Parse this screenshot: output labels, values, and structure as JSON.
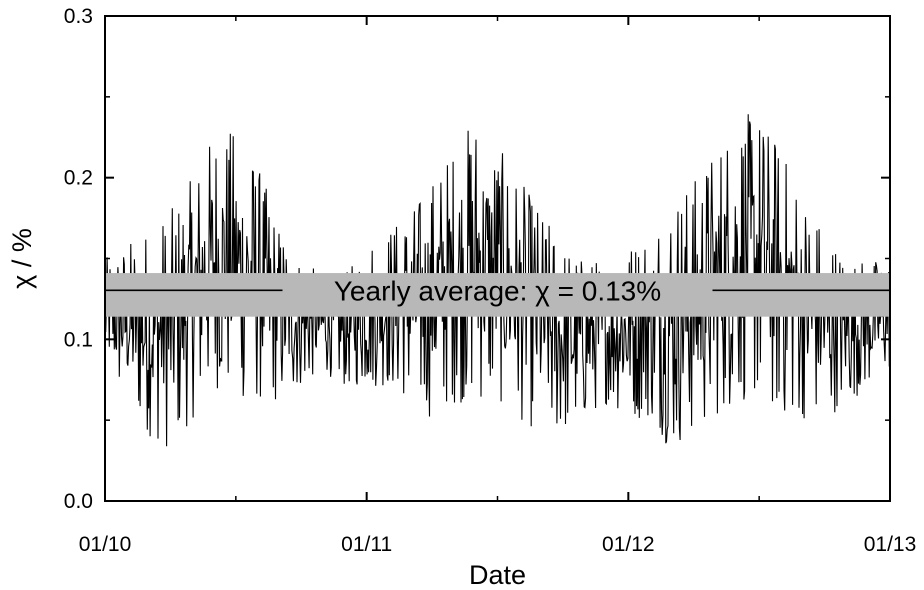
{
  "chart_data": {
    "type": "line",
    "title": "",
    "xlabel": "Date",
    "ylabel": "χ / %",
    "ylim": [
      0.0,
      0.3
    ],
    "y_ticks": [
      "0.0",
      "0.1",
      "0.2",
      "0.3"
    ],
    "x_ticks": [
      "01/10",
      "01/11",
      "01/12",
      "01/13"
    ],
    "x_range": [
      "2010-01",
      "2013-01"
    ],
    "grid": false,
    "legend": "none",
    "series": [
      {
        "color": "#000000",
        "style": "dense daily line oscillating around 0.13 with an annual cycle peaking mid-year",
        "x": [
          "2010-01",
          "2010-02",
          "2010-03",
          "2010-04",
          "2010-05",
          "2010-06",
          "2010-07",
          "2010-08",
          "2010-09",
          "2010-10",
          "2010-11",
          "2010-12",
          "2011-01",
          "2011-02",
          "2011-03",
          "2011-04",
          "2011-05",
          "2011-06",
          "2011-07",
          "2011-08",
          "2011-09",
          "2011-10",
          "2011-11",
          "2011-12",
          "2012-01",
          "2012-02",
          "2012-03",
          "2012-04",
          "2012-05",
          "2012-06",
          "2012-07",
          "2012-08",
          "2012-09",
          "2012-10",
          "2012-11",
          "2012-12",
          "2013-01"
        ],
        "upper": [
          0.15,
          0.16,
          0.17,
          0.18,
          0.2,
          0.23,
          0.23,
          0.21,
          0.17,
          0.15,
          0.14,
          0.14,
          0.16,
          0.17,
          0.18,
          0.2,
          0.22,
          0.24,
          0.22,
          0.2,
          0.18,
          0.16,
          0.15,
          0.15,
          0.16,
          0.17,
          0.19,
          0.2,
          0.22,
          0.24,
          0.24,
          0.22,
          0.19,
          0.17,
          0.15,
          0.15,
          0.15
        ],
        "lower": [
          0.08,
          0.06,
          0.04,
          0.03,
          0.05,
          0.07,
          0.06,
          0.06,
          0.06,
          0.07,
          0.08,
          0.07,
          0.07,
          0.07,
          0.06,
          0.05,
          0.06,
          0.06,
          0.06,
          0.05,
          0.04,
          0.04,
          0.05,
          0.06,
          0.05,
          0.05,
          0.03,
          0.04,
          0.05,
          0.06,
          0.06,
          0.05,
          0.05,
          0.05,
          0.06,
          0.07,
          0.08
        ]
      }
    ],
    "annotation": {
      "label": "Yearly average: χ = 0.13%",
      "value": 0.13,
      "band": [
        0.114,
        0.141
      ],
      "band_color": "#b8b8b8"
    }
  }
}
